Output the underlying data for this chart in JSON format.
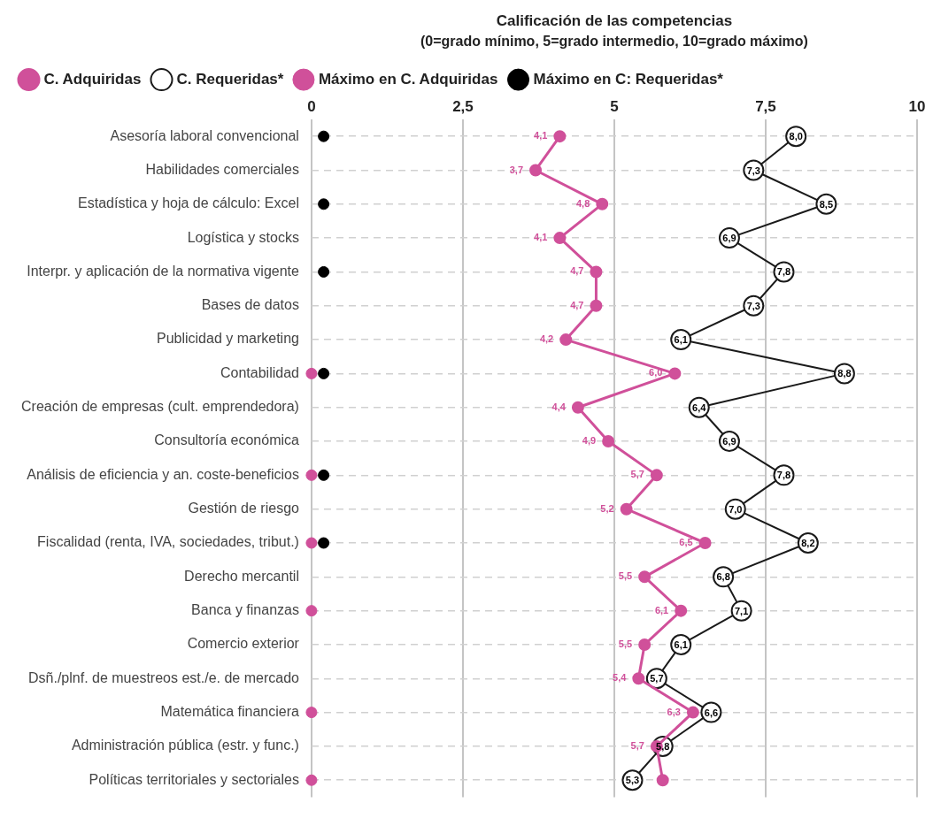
{
  "chart_data": {
    "type": "line",
    "orientation": "horizontal",
    "title": "Calificación de las competencias",
    "subtitle": "(0=grado mínimo, 5=grado intermedio, 10=grado máximo)",
    "categories": [
      "Asesoría laboral convencional",
      "Habilidades comerciales",
      "Estadística y hoja de cálculo: Excel",
      "Logística y stocks",
      "Interpr. y aplicación de la normativa vigente",
      "Bases de datos",
      "Publicidad y marketing",
      "Contabilidad",
      "Creación de empresas (cult. emprendedora)",
      "Consultoría económica",
      "Análisis de eficiencia y an. coste-beneficios",
      "Gestión de riesgo",
      "Fiscalidad (renta, IVA, sociedades, tribut.)",
      "Derecho mercantil",
      "Banca y finanzas",
      "Comercio exterior",
      "Dsñ./plnf. de muestreos est./e. de mercado",
      "Matemática financiera",
      "Administración pública (estr. y func.)",
      "Políticas territoriales y sectoriales"
    ],
    "series": [
      {
        "name": "C. Adquiridas",
        "color": "#d0509a",
        "values": [
          4.1,
          3.7,
          4.8,
          4.1,
          4.7,
          4.7,
          4.2,
          6.0,
          4.4,
          4.9,
          5.7,
          5.2,
          6.5,
          5.5,
          6.1,
          5.5,
          5.4,
          6.3,
          5.7,
          5.8
        ],
        "value_labels": [
          "4,1",
          "3,7",
          "4,8",
          "4,1",
          "4,7",
          "4,7",
          "4,2",
          "6,0",
          "4,4",
          "4,9",
          "5,7",
          "5,2",
          "6,5",
          "5,5",
          "6,1",
          "5,5",
          "5,4",
          "6,3",
          "5,7",
          null
        ]
      },
      {
        "name": "C. Requeridas*",
        "color": "#1a1a1a",
        "values": [
          8.0,
          7.3,
          8.5,
          6.9,
          7.8,
          7.3,
          6.1,
          8.8,
          6.4,
          6.9,
          7.8,
          7.0,
          8.2,
          6.8,
          7.1,
          6.1,
          5.7,
          6.6,
          5.8,
          5.3
        ],
        "value_labels": [
          "8,0",
          "7,3",
          "8,5",
          "6,9",
          "7,8",
          "7,3",
          "6,1",
          "8,8",
          "6,4",
          "6,9",
          "7,8",
          "7,0",
          "8,2",
          "6,8",
          "7,1",
          "6,1",
          "5,7",
          "6,6",
          "5,8",
          "5,3"
        ]
      },
      {
        "name": "Máximo en C. Adquiridas",
        "type": "scatter",
        "color": "#d0509a",
        "values": [
          null,
          null,
          null,
          null,
          null,
          null,
          null,
          0,
          null,
          null,
          0,
          null,
          0,
          null,
          0,
          null,
          null,
          0,
          null,
          0
        ]
      },
      {
        "name": "Máximo en C: Requeridas*",
        "type": "scatter",
        "color": "#000000",
        "values": [
          0.2,
          null,
          0.2,
          null,
          0.2,
          null,
          null,
          0.2,
          null,
          null,
          0.2,
          null,
          0.2,
          null,
          null,
          null,
          null,
          null,
          null,
          null
        ]
      }
    ],
    "xlim": [
      0,
      10
    ],
    "xticks": [
      0,
      {
        "value": 2.5,
        "label": "2,5"
      },
      5,
      {
        "value": 7.5,
        "label": "7,5"
      },
      10
    ],
    "grid": true,
    "legend": "top left",
    "marker": "circle"
  }
}
